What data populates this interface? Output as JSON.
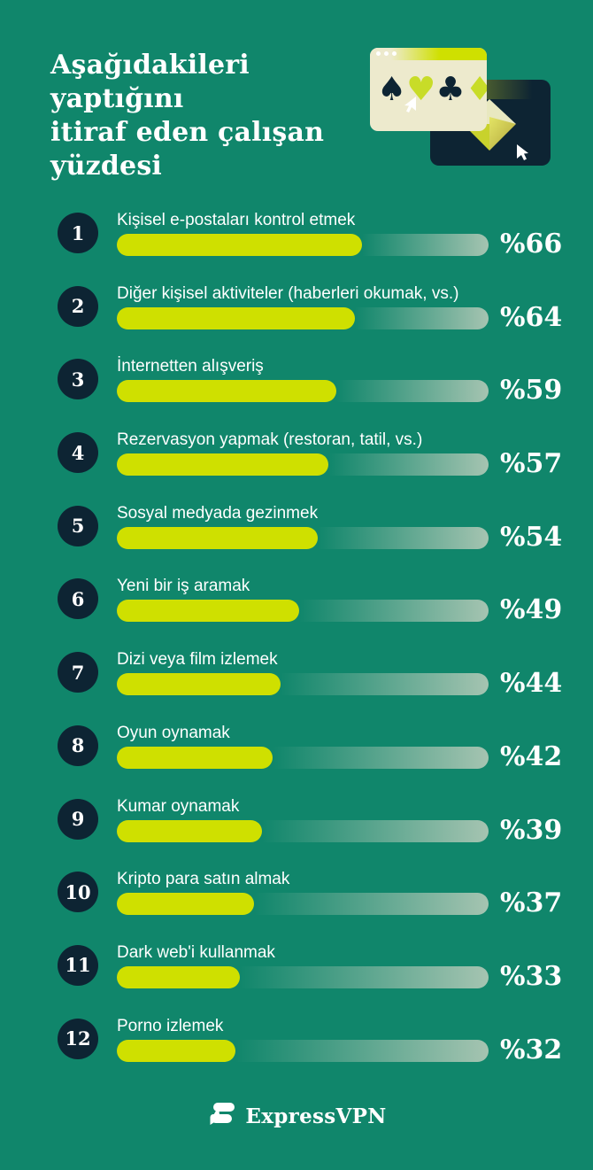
{
  "colors": {
    "background": "#10866B",
    "navy": "#0D2433",
    "lime": "#CFE000",
    "track_end": "#A5C4B1",
    "cream": "#EDEACD",
    "text": "#FFFFFF"
  },
  "header": {
    "title": "Aşağıdakileri yaptığını itiraf eden çalışan yüzdesi",
    "title_line1": "Aşağıdakileri yaptığını",
    "title_line2": "itiraf eden çalışan",
    "title_line3": "yüzdesi"
  },
  "illustration": {
    "icons": {
      "spade": "♠",
      "heart": "♥",
      "club": "♣",
      "diamond": "♦"
    }
  },
  "chart_data": {
    "type": "bar",
    "orientation": "horizontal",
    "title": "Aşağıdakileri yaptığını itiraf eden çalışan yüzdesi",
    "value_prefix": "%",
    "xlim": [
      0,
      100
    ],
    "categories": [
      "Kişisel e-postaları kontrol etmek",
      "Diğer kişisel aktiviteler (haberleri okumak, vs.)",
      "İnternetten alışveriş",
      "Rezervasyon yapmak (restoran, tatil, vs.)",
      "Sosyal medyada gezinmek",
      "Yeni bir iş aramak",
      "Dizi veya film izlemek",
      "Oyun oynamak",
      "Kumar oynamak",
      "Kripto para satın almak",
      "Dark web'i kullanmak",
      "Porno izlemek"
    ],
    "values": [
      66,
      64,
      59,
      57,
      54,
      49,
      44,
      42,
      39,
      37,
      33,
      32
    ],
    "rows": [
      {
        "rank": "1",
        "label": "Kişisel e-postaları kontrol etmek",
        "value": 66,
        "value_label": "%66"
      },
      {
        "rank": "2",
        "label": "Diğer kişisel aktiviteler (haberleri okumak, vs.)",
        "value": 64,
        "value_label": "%64"
      },
      {
        "rank": "3",
        "label": "İnternetten alışveriş",
        "value": 59,
        "value_label": "%59"
      },
      {
        "rank": "4",
        "label": "Rezervasyon yapmak (restoran, tatil, vs.)",
        "value": 57,
        "value_label": "%57"
      },
      {
        "rank": "5",
        "label": "Sosyal medyada gezinmek",
        "value": 54,
        "value_label": "%54"
      },
      {
        "rank": "6",
        "label": "Yeni bir iş aramak",
        "value": 49,
        "value_label": "%49"
      },
      {
        "rank": "7",
        "label": "Dizi veya film izlemek",
        "value": 44,
        "value_label": "%44"
      },
      {
        "rank": "8",
        "label": "Oyun oynamak",
        "value": 42,
        "value_label": "%42"
      },
      {
        "rank": "9",
        "label": "Kumar oynamak",
        "value": 39,
        "value_label": "%39"
      },
      {
        "rank": "10",
        "label": "Kripto para satın almak",
        "value": 37,
        "value_label": "%37"
      },
      {
        "rank": "11",
        "label": "Dark web'i kullanmak",
        "value": 33,
        "value_label": "%33"
      },
      {
        "rank": "12",
        "label": "Porno izlemek",
        "value": 32,
        "value_label": "%32"
      }
    ]
  },
  "footer": {
    "brand": "ExpressVPN"
  }
}
